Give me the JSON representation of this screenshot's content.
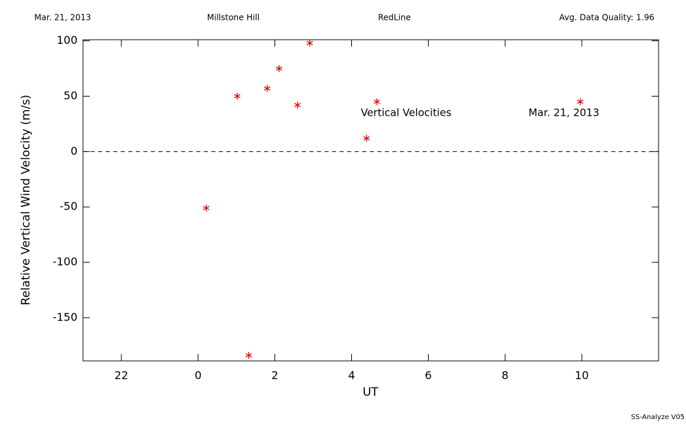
{
  "chart_data": {
    "type": "scatter",
    "header": [
      "Mar. 21, 2013",
      "Millstone Hill",
      "RedLine",
      "Avg. Data Quality: 1.96"
    ],
    "footer": "SS-Analyze V05",
    "x_label": "UT",
    "y_label": "Relative Vertical Wind Velocity (m/s)",
    "annotations": [
      "Vertical Velocities",
      "Mar. 21, 2013"
    ],
    "xlim": [
      -3,
      12
    ],
    "xticks": [
      {
        "value": -2,
        "label": "22"
      },
      0,
      2,
      4,
      6,
      8,
      10
    ],
    "ylim": [
      -189,
      101
    ],
    "yticks": [
      100,
      50,
      0,
      -50,
      -100,
      -150
    ],
    "series": [
      {
        "name": "Vertical Velocities",
        "color": "#e00000",
        "x": [
          0.21,
          1.02,
          1.32,
          1.8,
          2.11,
          2.59,
          2.91,
          4.39,
          4.66,
          9.96
        ],
        "values": [
          -51,
          50,
          -184,
          57,
          75,
          42,
          98,
          12,
          45,
          45
        ]
      }
    ]
  }
}
